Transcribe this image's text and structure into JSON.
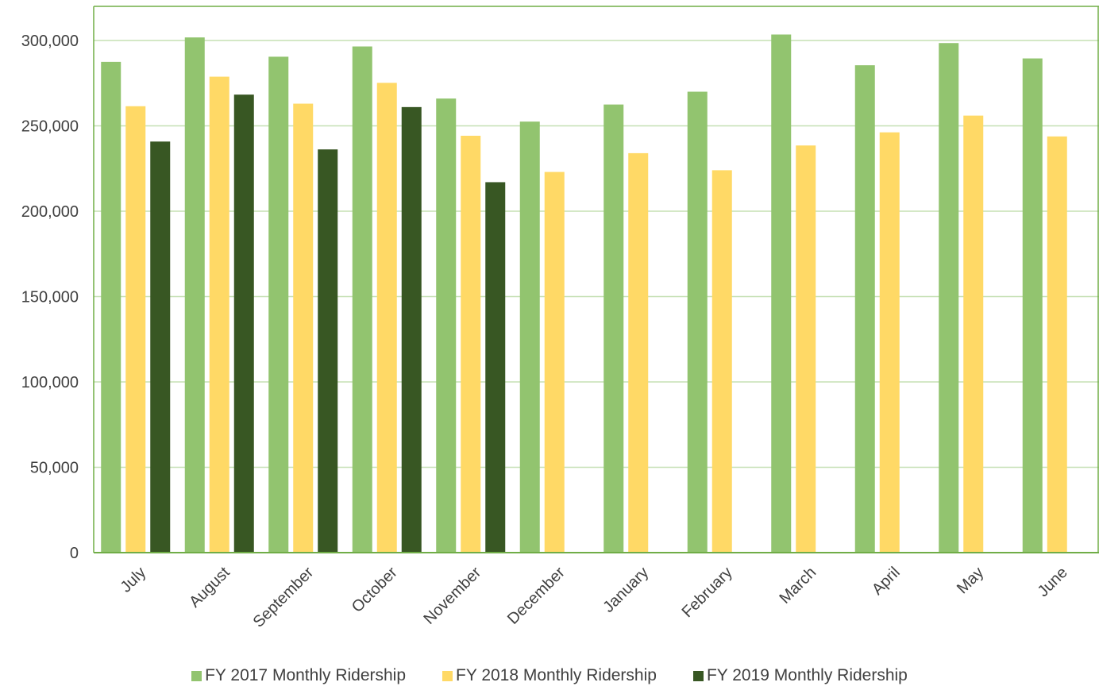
{
  "chart_data": {
    "type": "bar",
    "title": "",
    "xlabel": "",
    "ylabel": "",
    "ylim": [
      0,
      320000
    ],
    "yticks": [
      0,
      50000,
      100000,
      150000,
      200000,
      250000,
      300000
    ],
    "ytick_labels": [
      "0",
      "50,000",
      "100,000",
      "150,000",
      "200,000",
      "250,000",
      "300,000"
    ],
    "grid": true,
    "legend_position": "bottom",
    "categories": [
      "July",
      "August",
      "September",
      "October",
      "November",
      "December",
      "January",
      "February",
      "March",
      "April",
      "May",
      "June"
    ],
    "series": [
      {
        "name": "FY 2017 Monthly Ridership",
        "color": "#92c46f",
        "values": [
          287500,
          301800,
          290500,
          296500,
          266000,
          252500,
          262500,
          270000,
          303500,
          285500,
          298500,
          289500
        ]
      },
      {
        "name": "FY 2018 Monthly Ridership",
        "color": "#ffd966",
        "values": [
          261500,
          278800,
          263000,
          275200,
          244200,
          223000,
          234000,
          224000,
          238500,
          246200,
          256000,
          243800
        ]
      },
      {
        "name": "FY 2019 Monthly Ridership",
        "color": "#385723",
        "values": [
          240800,
          268300,
          236200,
          261000,
          217000,
          null,
          null,
          null,
          null,
          null,
          null,
          null
        ]
      }
    ]
  },
  "colors": {
    "axis": "#70ad47",
    "gridline": "#c5e0b4",
    "text": "#404040"
  }
}
